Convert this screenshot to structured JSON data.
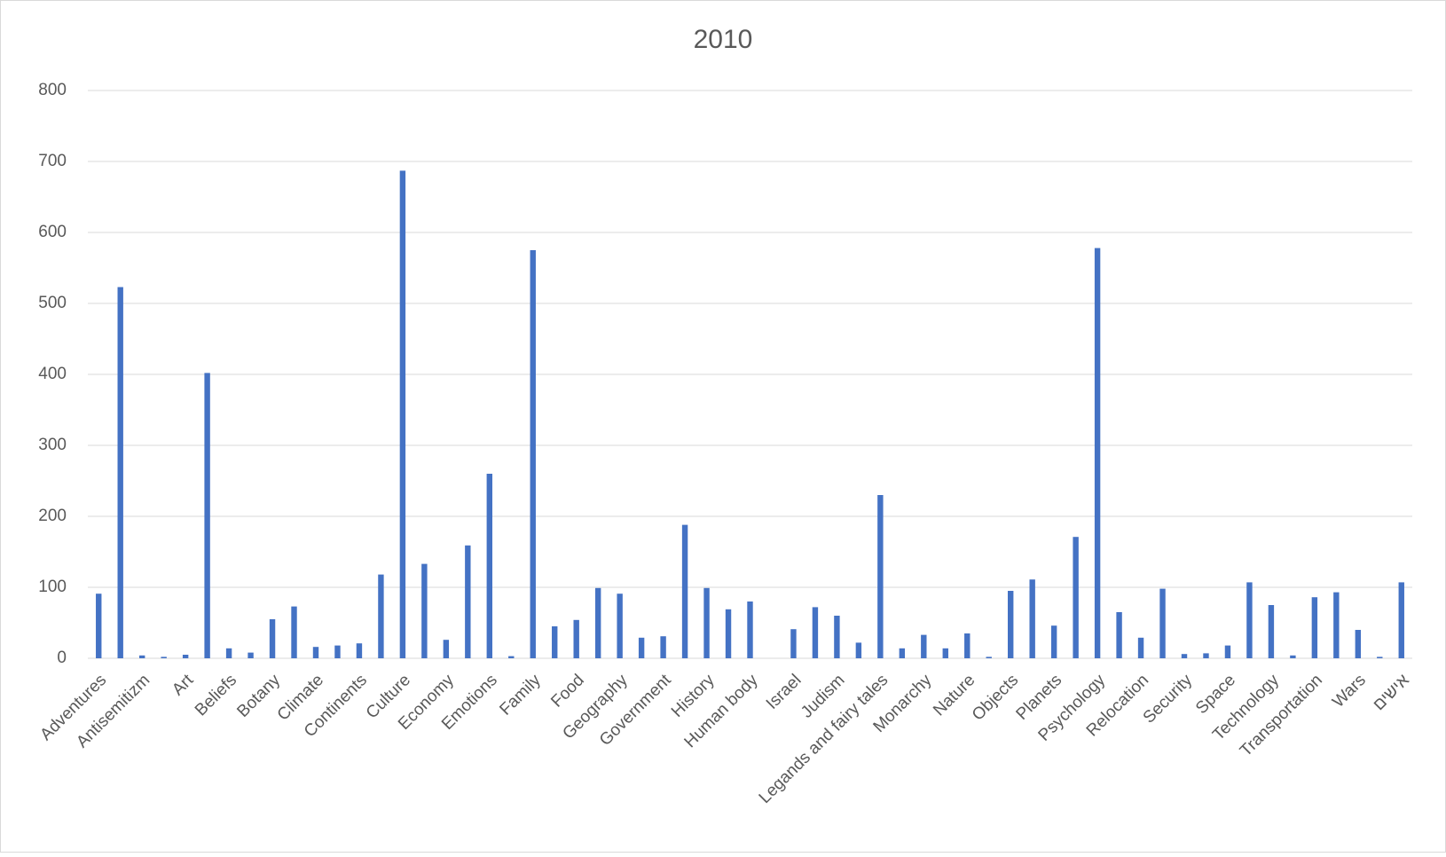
{
  "chart_data": {
    "type": "bar",
    "title": "2010",
    "categories": [
      "Adventures",
      null,
      "Antisemitizm",
      null,
      "Art",
      null,
      "Beliefs",
      null,
      "Botany",
      null,
      "Climate",
      null,
      "Continents",
      null,
      "Culture",
      null,
      "Economy",
      null,
      "Emotions",
      null,
      "Family",
      null,
      "Food",
      null,
      "Geography",
      null,
      "Government",
      null,
      "History",
      null,
      "Human body",
      null,
      "Israel",
      null,
      "Judism",
      null,
      "Legands and fairy tales",
      null,
      "Monarchy",
      null,
      "Nature",
      null,
      "Objects",
      null,
      "Planets",
      null,
      "Psychology",
      null,
      "Relocation",
      null,
      "Security",
      null,
      "Space",
      null,
      "Technology",
      null,
      "Transportation",
      null,
      "Wars",
      null,
      "אישים"
    ],
    "values": [
      91,
      523,
      4,
      2,
      5,
      402,
      14,
      8,
      55,
      73,
      16,
      18,
      21,
      118,
      687,
      133,
      26,
      159,
      260,
      3,
      575,
      45,
      54,
      99,
      91,
      29,
      31,
      188,
      99,
      69,
      80,
      0,
      41,
      72,
      60,
      22,
      230,
      14,
      33,
      14,
      35,
      2,
      95,
      111,
      46,
      171,
      578,
      65,
      29,
      98,
      6,
      7,
      18,
      107,
      75,
      4,
      86,
      93,
      40,
      2,
      107
    ],
    "color": "#4472c4",
    "ylim": [
      0,
      800
    ],
    "yticks": [
      0,
      100,
      200,
      300,
      400,
      500,
      600,
      700,
      800
    ],
    "grid": true
  }
}
